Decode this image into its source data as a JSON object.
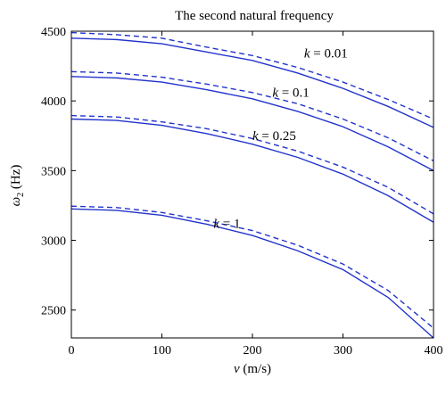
{
  "chart_data": {
    "type": "line",
    "title": "The second natural frequency",
    "xlabel": "v (m/s)",
    "ylabel": "ω2 (Hz)",
    "xlim": [
      0,
      400
    ],
    "ylim": [
      2300,
      4500
    ],
    "xticks": [
      "0",
      "100",
      "200",
      "300",
      "400"
    ],
    "yticks": [
      "2500",
      "3000",
      "3500",
      "4000",
      "4500"
    ],
    "grid": false,
    "x": [
      0,
      50,
      100,
      150,
      200,
      250,
      300,
      350,
      400
    ],
    "series": [
      {
        "group": "k = 0.01",
        "style": "dashed",
        "color": "#2233cc",
        "values": [
          4490,
          4475,
          4450,
          4385,
          4325,
          4240,
          4135,
          4010,
          3870
        ]
      },
      {
        "group": "k = 0.01",
        "style": "solid",
        "color": "#2233cc",
        "values": [
          4450,
          4440,
          4410,
          4350,
          4290,
          4200,
          4090,
          3960,
          3810
        ]
      },
      {
        "group": "k = 0.1",
        "style": "dashed",
        "color": "#2233cc",
        "values": [
          4210,
          4200,
          4170,
          4120,
          4060,
          3980,
          3870,
          3735,
          3570
        ]
      },
      {
        "group": "k = 0.1",
        "style": "solid",
        "color": "#2233cc",
        "values": [
          4175,
          4165,
          4135,
          4080,
          4015,
          3925,
          3815,
          3670,
          3500
        ]
      },
      {
        "group": "k = 0.25",
        "style": "dashed",
        "color": "#2233cc",
        "values": [
          3895,
          3885,
          3850,
          3800,
          3730,
          3640,
          3525,
          3380,
          3190
        ]
      },
      {
        "group": "k = 0.25",
        "style": "solid",
        "color": "#2233cc",
        "values": [
          3870,
          3860,
          3825,
          3765,
          3690,
          3595,
          3475,
          3320,
          3130
        ]
      },
      {
        "group": "k = 1",
        "style": "dashed",
        "color": "#2233cc",
        "values": [
          3245,
          3235,
          3200,
          3140,
          3070,
          2965,
          2830,
          2640,
          2370
        ]
      },
      {
        "group": "k = 1",
        "style": "solid",
        "color": "#2233cc",
        "values": [
          3225,
          3215,
          3180,
          3115,
          3035,
          2925,
          2790,
          2590,
          2300
        ]
      }
    ],
    "annotations": [
      {
        "var": "k",
        "text": " = 0.01",
        "x": 257,
        "y": 4310
      },
      {
        "var": "k",
        "text": " = 0.1",
        "x": 222,
        "y": 4030
      },
      {
        "var": "k",
        "text": " = 0.25",
        "x": 200,
        "y": 3720
      },
      {
        "var": "k",
        "text": " = 1",
        "x": 157,
        "y": 3090
      }
    ]
  }
}
